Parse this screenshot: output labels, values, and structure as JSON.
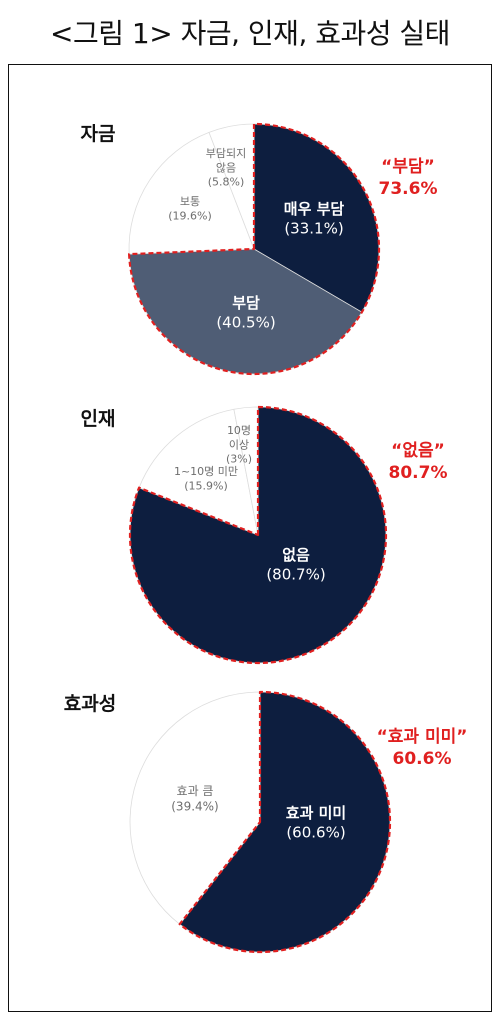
{
  "figure_title": "<그림 1> 자금, 인재, 효과성 실태",
  "colors": {
    "navy": "#0d1e3f",
    "slate": "#4f5d75",
    "white": "#ffffff",
    "highlight": "#e02020",
    "gray_text": "#6e6e6e"
  },
  "chart_data": [
    {
      "type": "pie",
      "title": "자금",
      "slices": [
        {
          "name": "매우 부담",
          "value": 33.1,
          "label_lines": [
            "매우 부담",
            "(33.1%)"
          ],
          "color": "#0d1e3f",
          "highlight": true
        },
        {
          "name": "부담",
          "value": 40.5,
          "label_lines": [
            "부담",
            "(40.5%)"
          ],
          "color": "#4f5d75",
          "highlight": true
        },
        {
          "name": "보통",
          "value": 19.6,
          "label_lines": [
            "보통",
            "(19.6%)"
          ],
          "color": "#ffffff",
          "highlight": false
        },
        {
          "name": "부담되지 않음",
          "value": 5.8,
          "label_lines": [
            "부담되지",
            "않음",
            "(5.8%)"
          ],
          "color": "#ffffff",
          "highlight": false
        }
      ],
      "callout": {
        "label": "“부담”",
        "value": "73.6%"
      }
    },
    {
      "type": "pie",
      "title": "인재",
      "slices": [
        {
          "name": "없음",
          "value": 80.7,
          "label_lines": [
            "없음",
            "(80.7%)"
          ],
          "color": "#0d1e3f",
          "highlight": true
        },
        {
          "name": "1~10명 미만",
          "value": 15.9,
          "label_lines": [
            "1~10명 미만",
            "(15.9%)"
          ],
          "color": "#ffffff",
          "highlight": false
        },
        {
          "name": "10명 이상",
          "value": 3,
          "label_lines": [
            "10명",
            "이상",
            "(3%)"
          ],
          "color": "#ffffff",
          "highlight": false
        }
      ],
      "callout": {
        "label": "“없음”",
        "value": "80.7%"
      }
    },
    {
      "type": "pie",
      "title": "효과성",
      "slices": [
        {
          "name": "효과 미미",
          "value": 60.6,
          "label_lines": [
            "효과 미미",
            "(60.6%)"
          ],
          "color": "#0d1e3f",
          "highlight": true
        },
        {
          "name": "효과 큼",
          "value": 39.4,
          "label_lines": [
            "효과 큼",
            "(39.4%)"
          ],
          "color": "#ffffff",
          "highlight": false
        }
      ],
      "callout": {
        "label": "“효과 미미”",
        "value": "60.6%"
      }
    }
  ]
}
